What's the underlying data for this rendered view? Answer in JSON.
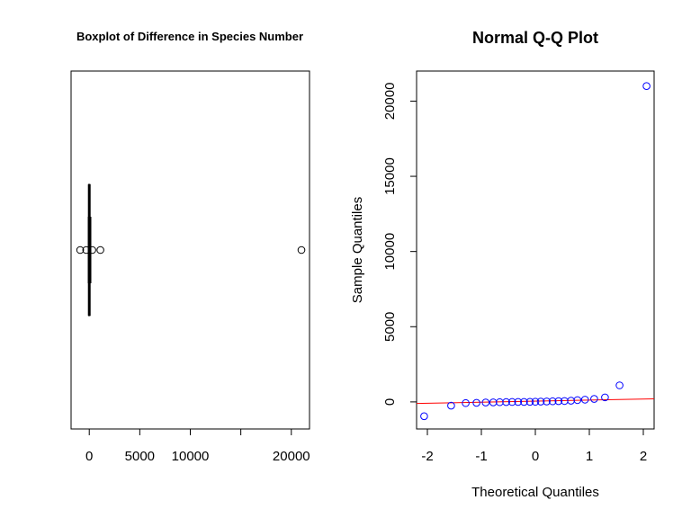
{
  "chart_data": [
    {
      "type": "box",
      "title": "Boxplot of Difference in Species Number",
      "orientation": "horizontal",
      "xlim": [
        -1800,
        21800
      ],
      "x_ticks": [
        0,
        5000,
        10000,
        15000,
        20000
      ],
      "x_tick_labels": [
        "0",
        "5000",
        "10000",
        "",
        "20000"
      ],
      "box": {
        "min": -100,
        "q1": -60,
        "median": 0,
        "q3": 60,
        "max": 160
      },
      "outliers": [
        -900,
        -300,
        300,
        1100,
        21000
      ]
    },
    {
      "type": "scatter",
      "title": "Normal Q-Q Plot",
      "xlabel": "Theoretical Quantiles",
      "ylabel": "Sample Quantiles",
      "xlim": [
        -2.2,
        2.2
      ],
      "ylim": [
        -1800,
        22000
      ],
      "x_ticks": [
        -2,
        -1,
        0,
        1,
        2
      ],
      "y_ticks": [
        0,
        5000,
        10000,
        15000,
        20000
      ],
      "point_color": "#0000ff",
      "line_color": "#ff0000",
      "points": [
        {
          "x": -2.06,
          "y": -950
        },
        {
          "x": -1.56,
          "y": -250
        },
        {
          "x": -1.29,
          "y": -80
        },
        {
          "x": -1.09,
          "y": -60
        },
        {
          "x": -0.92,
          "y": -40
        },
        {
          "x": -0.78,
          "y": -30
        },
        {
          "x": -0.66,
          "y": -20
        },
        {
          "x": -0.54,
          "y": -10
        },
        {
          "x": -0.43,
          "y": -5
        },
        {
          "x": -0.32,
          "y": 0
        },
        {
          "x": -0.21,
          "y": 0
        },
        {
          "x": -0.1,
          "y": 5
        },
        {
          "x": 0.0,
          "y": 10
        },
        {
          "x": 0.1,
          "y": 20
        },
        {
          "x": 0.21,
          "y": 30
        },
        {
          "x": 0.32,
          "y": 40
        },
        {
          "x": 0.43,
          "y": 50
        },
        {
          "x": 0.54,
          "y": 60
        },
        {
          "x": 0.66,
          "y": 80
        },
        {
          "x": 0.78,
          "y": 120
        },
        {
          "x": 0.92,
          "y": 150
        },
        {
          "x": 1.09,
          "y": 200
        },
        {
          "x": 1.29,
          "y": 300
        },
        {
          "x": 1.56,
          "y": 1100
        },
        {
          "x": 2.06,
          "y": 21000
        }
      ],
      "reference_line": {
        "x": [
          -2.2,
          2.2
        ],
        "y": [
          -100,
          200
        ]
      }
    }
  ]
}
